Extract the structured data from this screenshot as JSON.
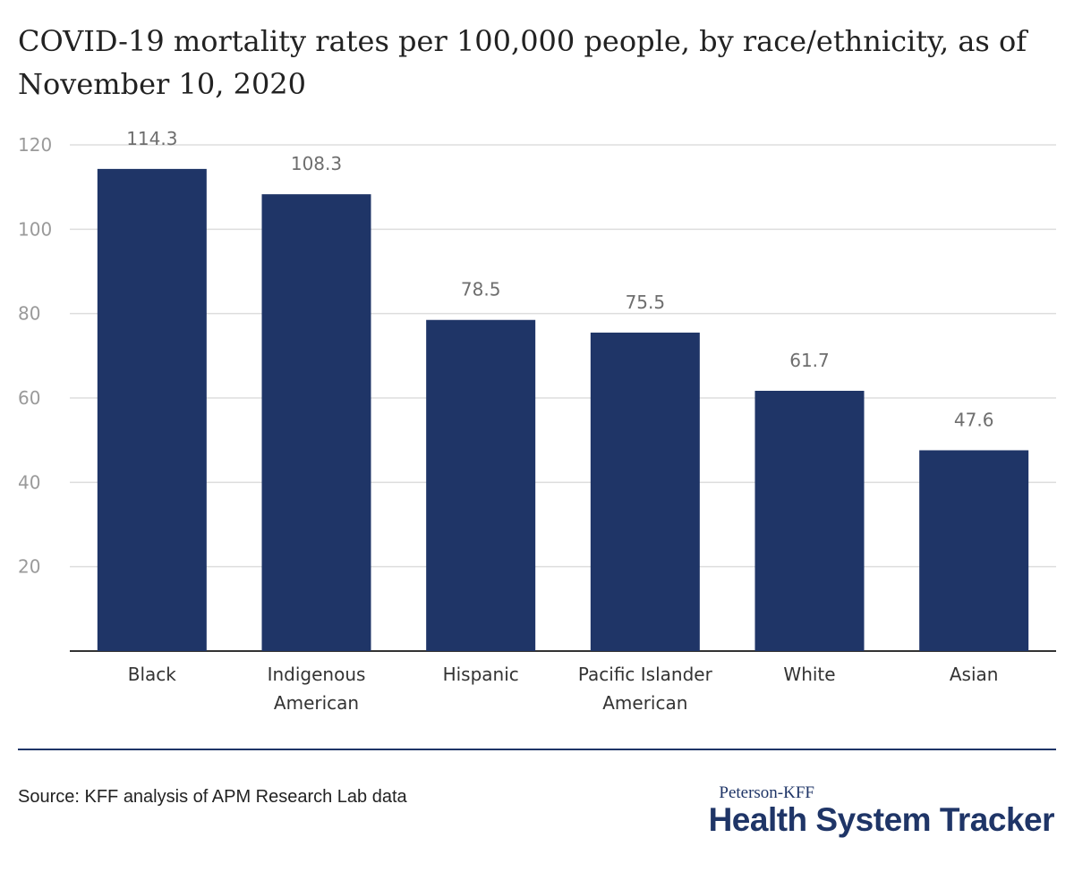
{
  "chart_data": {
    "type": "bar",
    "title": "COVID-19 mortality rates per 100,000 people, by race/ethnicity, as of November 10, 2020",
    "categories": [
      [
        "Black"
      ],
      [
        "Indigenous",
        "American"
      ],
      [
        "Hispanic"
      ],
      [
        "Pacific Islander",
        "American"
      ],
      [
        "White"
      ],
      [
        "Asian"
      ]
    ],
    "values": [
      114.3,
      108.3,
      78.5,
      75.5,
      61.7,
      47.6
    ],
    "value_labels": [
      "114.3",
      "108.3",
      "78.5",
      "75.5",
      "61.7",
      "47.6"
    ],
    "yticks": [
      20,
      40,
      60,
      80,
      100,
      120
    ],
    "ylim": [
      0,
      120
    ],
    "grid": true,
    "xlabel": "",
    "ylabel": ""
  },
  "footer": {
    "source": "Source: KFF analysis of APM Research Lab data",
    "brand_top": "Peterson-KFF",
    "brand_main": "Health System Tracker"
  },
  "colors": {
    "bar": "#1f3567",
    "grid": "#dddddd",
    "axis": "#333333",
    "divider": "#1f3567",
    "brand": "#1f3567"
  }
}
